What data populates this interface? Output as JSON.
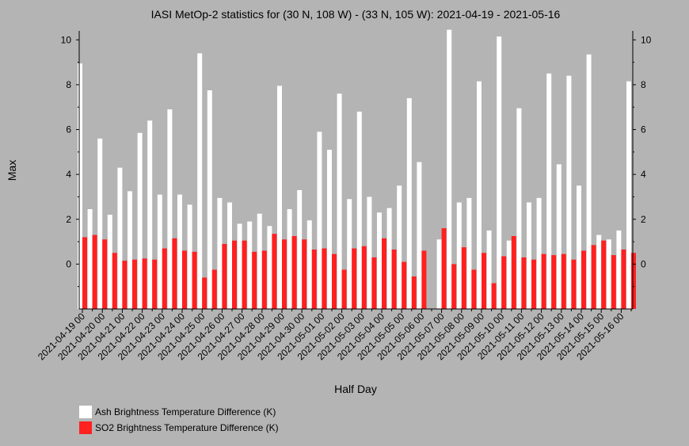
{
  "chart_data": {
    "type": "bar",
    "title": "IASI MetOp-2 statistics for (30 N, 108 W) - (33 N, 105 W): 2021-04-19 - 2021-05-16",
    "xlabel": "Half Day",
    "ylabel": "Max",
    "ylim": [
      -2,
      10.4
    ],
    "yticks": [
      0,
      2,
      4,
      6,
      8,
      10
    ],
    "tick_labels": [
      "2021-04-19 00",
      "2021-04-20 00",
      "2021-04-21 00",
      "2021-04-22 00",
      "2021-04-23 00",
      "2021-04-24 00",
      "2021-04-25 00",
      "2021-04-26 00",
      "2021-04-27 00",
      "2021-04-28 00",
      "2021-04-29 00",
      "2021-04-30 00",
      "2021-05-01 00",
      "2021-05-02 00",
      "2021-05-03 00",
      "2021-05-04 00",
      "2021-05-05 00",
      "2021-05-06 00",
      "2021-05-07 00",
      "2021-05-08 00",
      "2021-05-09 00",
      "2021-05-10 00",
      "2021-05-11 00",
      "2021-05-12 00",
      "2021-05-13 00",
      "2021-05-14 00",
      "2021-05-15 00",
      "2021-05-16 00"
    ],
    "categories": [
      "2021-04-19 00",
      "2021-04-19 12",
      "2021-04-20 00",
      "2021-04-20 12",
      "2021-04-21 00",
      "2021-04-21 12",
      "2021-04-22 00",
      "2021-04-22 12",
      "2021-04-23 00",
      "2021-04-23 12",
      "2021-04-24 00",
      "2021-04-24 12",
      "2021-04-25 00",
      "2021-04-25 12",
      "2021-04-26 00",
      "2021-04-26 12",
      "2021-04-27 00",
      "2021-04-27 12",
      "2021-04-28 00",
      "2021-04-28 12",
      "2021-04-29 00",
      "2021-04-29 12",
      "2021-04-30 00",
      "2021-04-30 12",
      "2021-05-01 00",
      "2021-05-01 12",
      "2021-05-02 00",
      "2021-05-02 12",
      "2021-05-03 00",
      "2021-05-03 12",
      "2021-05-04 00",
      "2021-05-04 12",
      "2021-05-05 00",
      "2021-05-05 12",
      "2021-05-06 00",
      "2021-05-06 12",
      "2021-05-07 00",
      "2021-05-07 12",
      "2021-05-08 00",
      "2021-05-08 12",
      "2021-05-09 00",
      "2021-05-09 12",
      "2021-05-10 00",
      "2021-05-10 12",
      "2021-05-11 00",
      "2021-05-11 12",
      "2021-05-12 00",
      "2021-05-12 12",
      "2021-05-13 00",
      "2021-05-13 12",
      "2021-05-14 00",
      "2021-05-14 12",
      "2021-05-15 00",
      "2021-05-15 12",
      "2021-05-16 00",
      "2021-05-16 12"
    ],
    "series": [
      {
        "name": "Ash Brightness Temperature Difference (K)",
        "color": "#ffffff",
        "values": [
          8.95,
          2.45,
          5.6,
          2.2,
          4.3,
          3.25,
          5.85,
          6.4,
          3.1,
          6.9,
          3.1,
          2.65,
          9.4,
          7.75,
          2.95,
          2.75,
          1.8,
          1.9,
          2.25,
          1.7,
          7.95,
          2.45,
          3.3,
          1.95,
          5.9,
          5.1,
          7.6,
          2.9,
          6.8,
          3.0,
          2.3,
          2.5,
          3.5,
          7.4,
          4.55,
          null,
          1.1,
          10.45,
          2.75,
          2.95,
          8.15,
          1.5,
          10.15,
          1.05,
          6.95,
          2.75,
          2.95,
          8.5,
          4.45,
          8.4,
          3.5,
          9.35,
          1.3,
          1.1,
          1.5,
          8.15
        ]
      },
      {
        "name": "SO2 Brightness Temperature Difference (K)",
        "color": "#ff2020",
        "values": [
          1.2,
          1.3,
          1.1,
          0.5,
          0.15,
          0.2,
          0.25,
          0.2,
          0.7,
          1.15,
          0.6,
          0.55,
          -0.6,
          -0.25,
          0.9,
          1.05,
          1.05,
          0.55,
          0.6,
          1.35,
          1.1,
          1.25,
          1.1,
          0.65,
          0.7,
          0.45,
          -0.25,
          0.7,
          0.8,
          0.3,
          1.15,
          0.65,
          0.1,
          -0.55,
          0.6,
          null,
          1.6,
          0.0,
          0.75,
          -0.25,
          0.5,
          -0.85,
          0.35,
          1.25,
          0.3,
          0.2,
          0.45,
          0.4,
          0.45,
          0.2,
          0.6,
          0.85,
          1.05,
          0.4,
          0.65,
          0.5
        ]
      }
    ],
    "legend_position": "bottom-left",
    "grid": false
  }
}
